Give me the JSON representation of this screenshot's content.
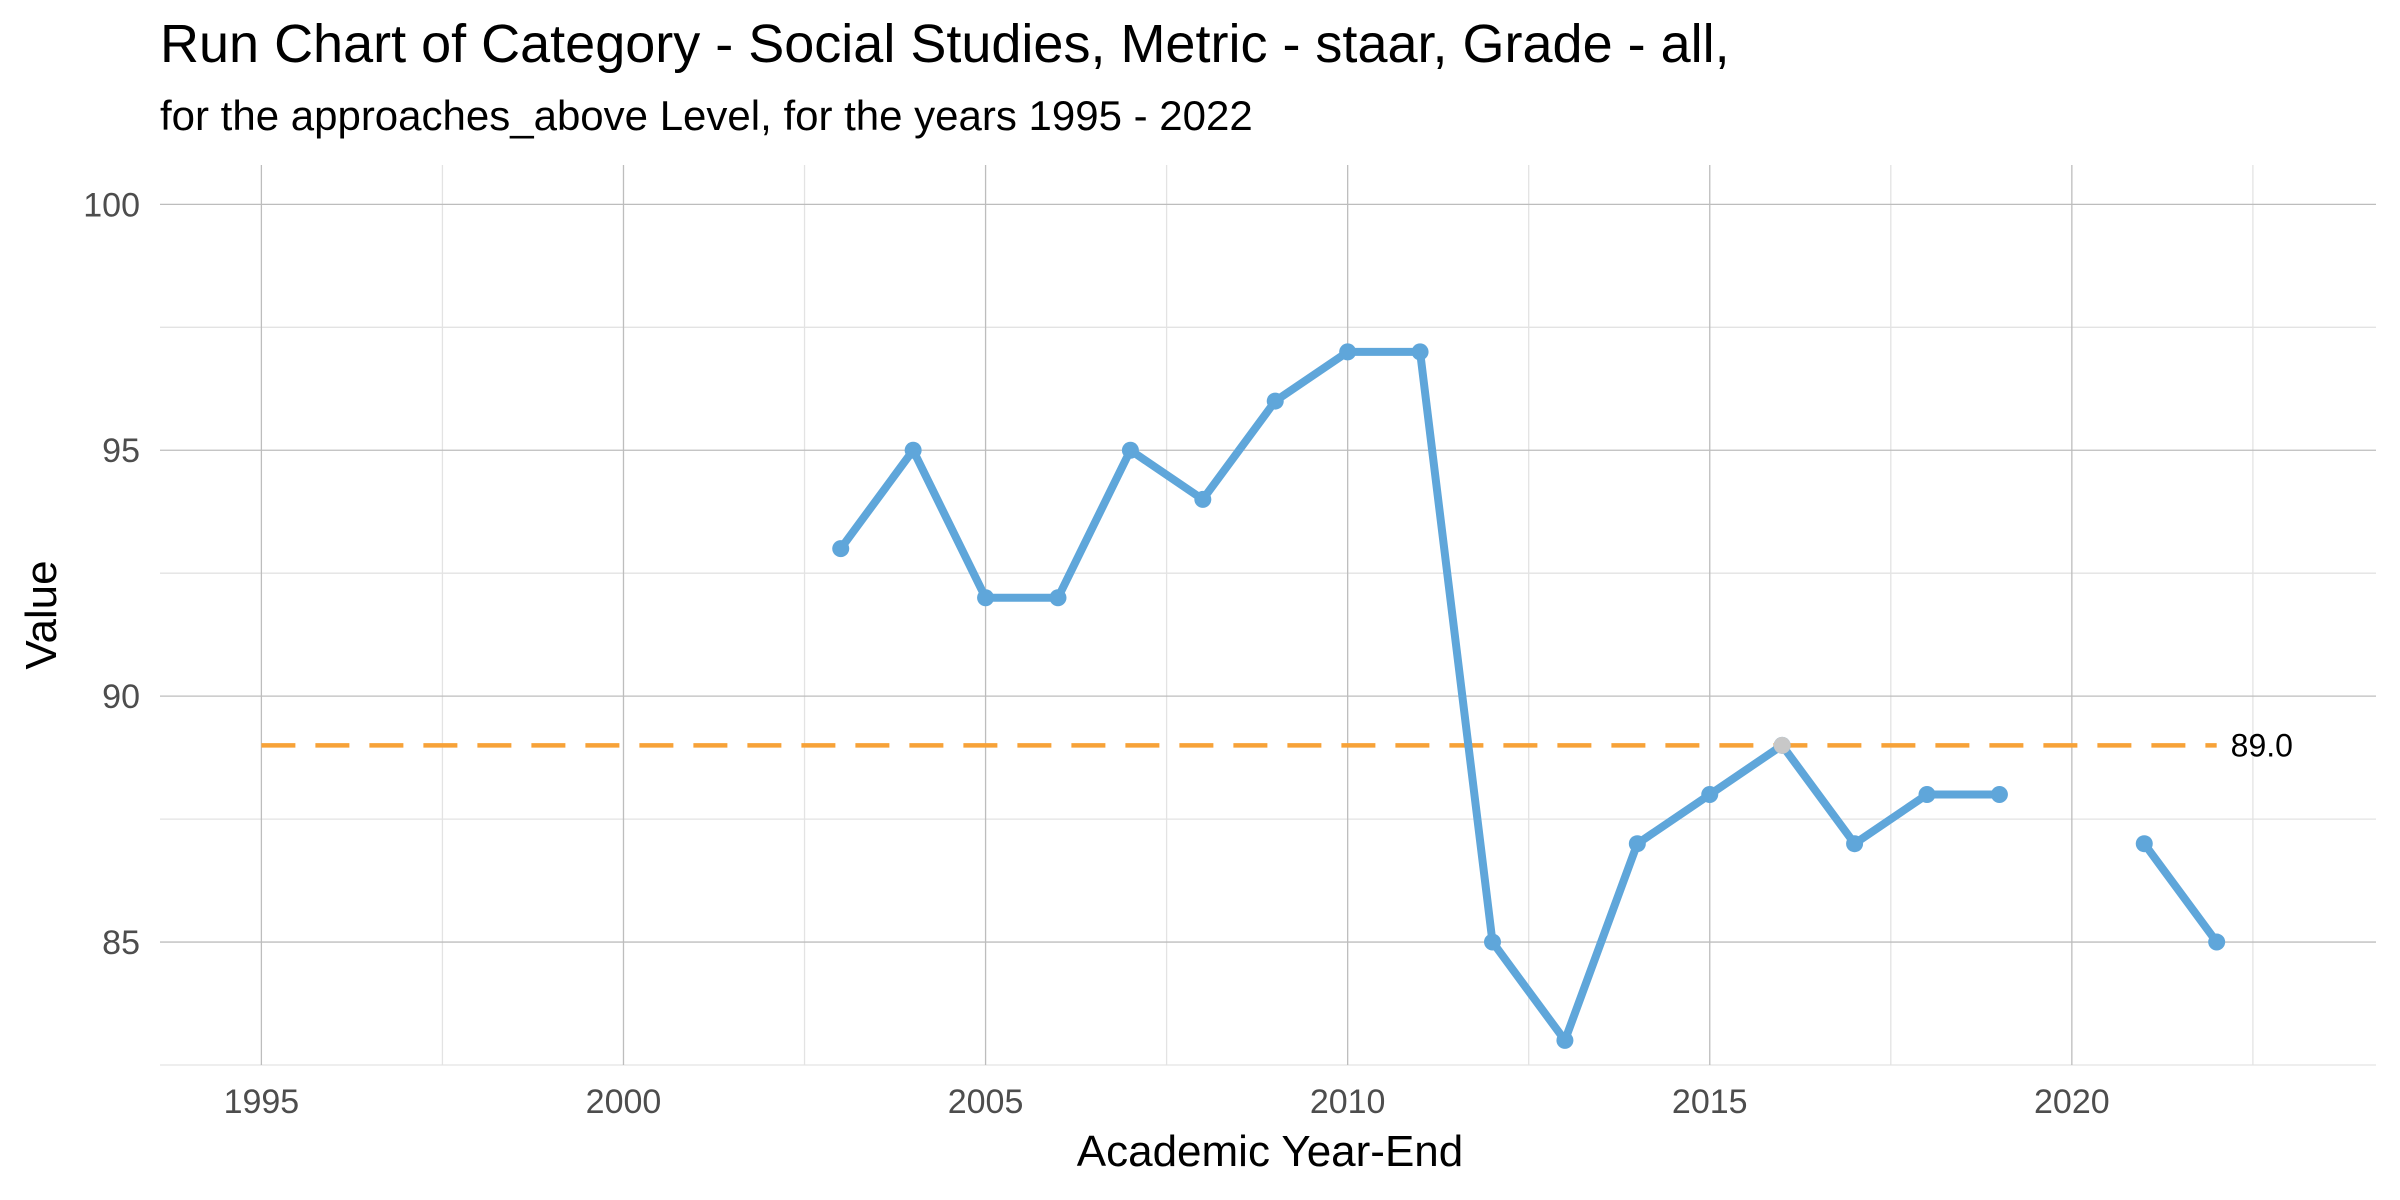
{
  "chart_data": {
    "type": "line",
    "title": "Run Chart of Category - Social Studies, Metric - staar, Grade - all,",
    "subtitle": "for the approaches_above Level, for the years 1995 - 2022",
    "xlabel": "Academic Year-End",
    "ylabel": "Value",
    "xlim": [
      1993.6,
      2024.2
    ],
    "ylim": [
      82.5,
      100.8
    ],
    "x_ticks": [
      1995,
      2000,
      2005,
      2010,
      2015,
      2020
    ],
    "y_ticks": [
      85,
      90,
      95,
      100
    ],
    "grid": true,
    "legend": "none",
    "series": [
      {
        "color": "#5fa6da",
        "segments": [
          {
            "x": [
              2003,
              2004,
              2005,
              2006,
              2007,
              2008,
              2009,
              2010,
              2011,
              2012,
              2013,
              2014,
              2015,
              2016,
              2017,
              2018,
              2019
            ],
            "y": [
              93,
              95,
              92,
              92,
              95,
              94,
              96,
              97,
              97,
              85,
              83,
              87,
              88,
              89,
              87,
              88,
              88
            ]
          },
          {
            "x": [
              2021,
              2022
            ],
            "y": [
              87,
              85
            ]
          }
        ]
      }
    ],
    "highlight_points": [
      {
        "x": 2016,
        "y": 89,
        "color": "#c8c8c8"
      }
    ],
    "reference_line": {
      "y": 89.0,
      "x_range": [
        1995,
        2022
      ],
      "label": "89.0",
      "color": "#f7a238",
      "style": "dashed"
    }
  }
}
